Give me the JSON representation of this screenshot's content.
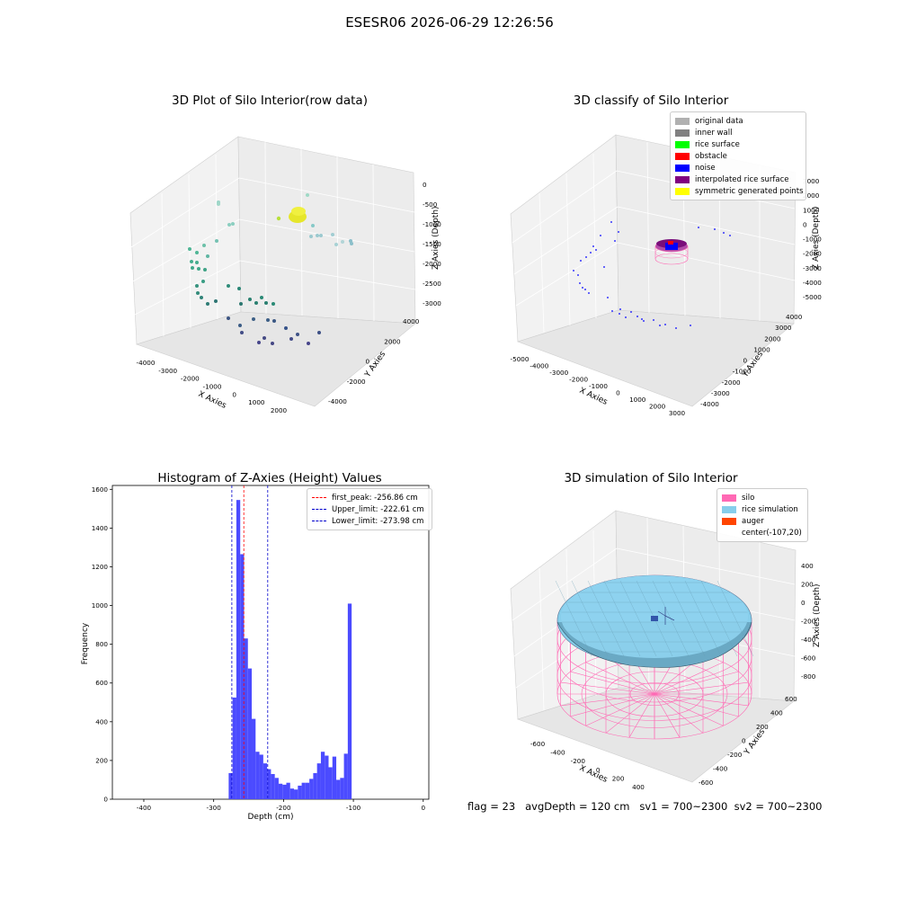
{
  "figure": {
    "suptitle": "ESESR06 2026-06-29 12:26:56",
    "status_line": "flag = 23   avgDepth = 120 cm   sv1 = 700~2300  sv2 = 700~2300"
  },
  "colors": {
    "bar": "#4b4bff",
    "red_line": "#ff0000",
    "blue_line": "#0000cc",
    "silo": "#ff69b4",
    "rice_simulation": "#87ceeb",
    "auger": "#ff4500"
  },
  "panels": {
    "p1": {
      "title": "3D Plot of Silo Interior(row data)",
      "xlabel": "X Axies",
      "ylabel": "Y Axies",
      "zlabel": "Z Axies (Depth)",
      "xticks": [
        "-4000",
        "-3000",
        "-2000",
        "-1000",
        "0",
        "1000",
        "2000"
      ],
      "yticks": [
        "-4000",
        "-2000",
        "0",
        "2000",
        "4000"
      ],
      "zticks": [
        "0",
        "-500",
        "-1000",
        "-1500",
        "-2000",
        "-2500",
        "-3000"
      ]
    },
    "p2": {
      "title": "3D classify of Silo Interior",
      "xlabel": "X Axies",
      "ylabel": "Y Axies",
      "zlabel": "Z Axies (Depth)",
      "xticks": [
        "-5000",
        "-4000",
        "-3000",
        "-2000",
        "-1000",
        "0",
        "1000",
        "2000",
        "3000"
      ],
      "yticks": [
        "-4000",
        "-3000",
        "-2000",
        "-1000",
        "0",
        "1000",
        "2000",
        "3000",
        "4000"
      ],
      "zticks": [
        "3000",
        "2000",
        "1000",
        "0",
        "-1000",
        "-2000",
        "-3000",
        "-4000",
        "-5000"
      ],
      "legend": [
        {
          "label": "original data",
          "color": "#b0b0b0"
        },
        {
          "label": "inner wall",
          "color": "#808080"
        },
        {
          "label": "rice surface",
          "color": "#00ff00"
        },
        {
          "label": "obstacle",
          "color": "#ff0000"
        },
        {
          "label": "noise",
          "color": "#0000ff"
        },
        {
          "label": "interpolated rice surface",
          "color": "#800080"
        },
        {
          "label": "symmetric generated points",
          "color": "#ffff00"
        }
      ]
    },
    "p3": {
      "title": "Histogram of Z-Axies (Height) Values",
      "xlabel": "Depth (cm)",
      "ylabel": "Frequency",
      "legend": [
        {
          "label": "first_peak: -256.86 cm",
          "color": "#ff0000"
        },
        {
          "label": "Upper_limit: -222.61 cm",
          "color": "#0000cc"
        },
        {
          "label": "Lower_limit: -273.98 cm",
          "color": "#0000cc"
        }
      ]
    },
    "p4": {
      "title": "3D simulation of Silo Interior",
      "xlabel": "X Axies",
      "ylabel": "Y Axies",
      "zlabel": "Z Axies (Depth)",
      "xticks": [
        "-600",
        "-400",
        "-200",
        "0",
        "200",
        "400"
      ],
      "yticks": [
        "-600",
        "-400",
        "-200",
        "0",
        "200",
        "400",
        "600"
      ],
      "zticks": [
        "400",
        "200",
        "0",
        "-200",
        "-400",
        "-600",
        "-800"
      ],
      "legend": [
        {
          "label": "silo",
          "color": "#ff69b4"
        },
        {
          "label": "rice simulation",
          "color": "#87ceeb"
        },
        {
          "label": "auger",
          "color": "#ff4500"
        },
        {
          "label": "center(-107,20)",
          "color": "none"
        }
      ]
    }
  },
  "chart_data": [
    {
      "type": "scatter",
      "title": "3D Plot of Silo Interior(row data)",
      "xlabel": "X Axies",
      "ylabel": "Y Axies",
      "zlabel": "Z Axies (Depth)",
      "xlim": [
        -4500,
        2500
      ],
      "ylim": [
        -4500,
        4500
      ],
      "zlim": [
        -3200,
        100
      ]
    },
    {
      "type": "scatter",
      "title": "3D classify of Silo Interior",
      "xlabel": "X Axies",
      "ylabel": "Y Axies",
      "zlabel": "Z Axies (Depth)",
      "xlim": [
        -5000,
        3000
      ],
      "ylim": [
        -4000,
        4000
      ],
      "zlim": [
        -5000,
        3000
      ]
    },
    {
      "type": "bar",
      "title": "Histogram of Z-Axies (Height) Values",
      "xlabel": "Depth (cm)",
      "ylabel": "Frequency",
      "xlim": [
        -445,
        8
      ],
      "ylim": [
        0,
        1620
      ],
      "xticks": [
        -400,
        -300,
        -200,
        -100,
        0
      ],
      "yticks": [
        0,
        200,
        400,
        600,
        800,
        1000,
        1200,
        1400,
        1600
      ],
      "bin_width": 5.5,
      "bins": [
        [
          -278.5,
          135
        ],
        [
          -273,
          525
        ],
        [
          -267.5,
          1545
        ],
        [
          -262,
          1265
        ],
        [
          -256.5,
          830
        ],
        [
          -251,
          675
        ],
        [
          -245.5,
          415
        ],
        [
          -240,
          245
        ],
        [
          -234.5,
          230
        ],
        [
          -229,
          185
        ],
        [
          -223.5,
          155
        ],
        [
          -218,
          130
        ],
        [
          -212.5,
          110
        ],
        [
          -207,
          80
        ],
        [
          -201.5,
          75
        ],
        [
          -196,
          85
        ],
        [
          -190.5,
          55
        ],
        [
          -185,
          50
        ],
        [
          -179.5,
          70
        ],
        [
          -174,
          85
        ],
        [
          -168.5,
          85
        ],
        [
          -163,
          105
        ],
        [
          -157.5,
          135
        ],
        [
          -152,
          185
        ],
        [
          -146.5,
          245
        ],
        [
          -141,
          225
        ],
        [
          -135.5,
          165
        ],
        [
          -130,
          220
        ],
        [
          -124.5,
          100
        ],
        [
          -119,
          110
        ],
        [
          -113.5,
          235
        ],
        [
          -108,
          1010
        ]
      ],
      "vlines": [
        {
          "label": "first_peak",
          "x": -256.86
        },
        {
          "label": "Upper_limit",
          "x": -222.61
        },
        {
          "label": "Lower_limit",
          "x": -273.98
        }
      ]
    },
    {
      "type": "area",
      "title": "3D simulation of Silo Interior",
      "xlabel": "X Axies",
      "ylabel": "Y Axies",
      "zlabel": "Z Axies (Depth)",
      "xlim": [
        -700,
        500
      ],
      "ylim": [
        -700,
        700
      ],
      "zlim": [
        -900,
        450
      ],
      "center": [
        -107,
        20
      ]
    }
  ]
}
